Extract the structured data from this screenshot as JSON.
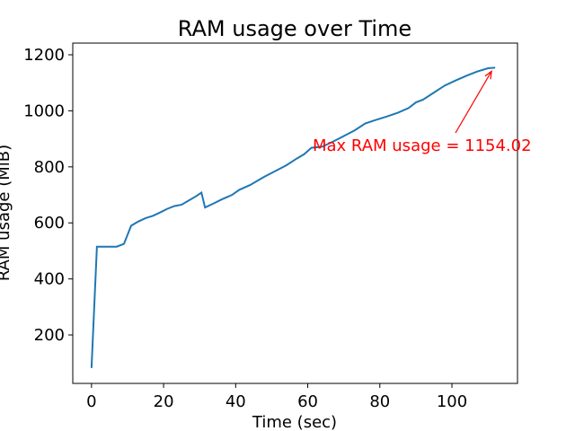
{
  "chart_data": {
    "type": "line",
    "title": "RAM usage over Time",
    "x_label": "Time (sec)",
    "y_label": "RAM usage (MiB)",
    "annotation": "Max RAM usage = 1154.02",
    "annotation_color": "#ff0000",
    "x": [
      0,
      1.5,
      7,
      9,
      11,
      13,
      15,
      17,
      19,
      21,
      23,
      25,
      27,
      29,
      30.5,
      31.5,
      34,
      36,
      39,
      41,
      44,
      46,
      48,
      51,
      54,
      57,
      59,
      61,
      64,
      67,
      70,
      73,
      76,
      79,
      82,
      85,
      88,
      90,
      92,
      95,
      98,
      101,
      104,
      107,
      110,
      112
    ],
    "series": [
      {
        "name": "RAM usage",
        "color": "#1f77b4",
        "values": [
          82,
          515,
          515,
          525,
          590,
          605,
          617,
          625,
          637,
          650,
          660,
          665,
          680,
          695,
          708,
          655,
          670,
          683,
          700,
          718,
          735,
          750,
          765,
          785,
          805,
          830,
          845,
          868,
          872,
          890,
          910,
          930,
          955,
          968,
          980,
          993,
          1010,
          1030,
          1040,
          1065,
          1090,
          1108,
          1125,
          1140,
          1152,
          1154.02
        ]
      }
    ],
    "xlim": [
      -5.2,
      118.2
    ],
    "xticks": [
      0,
      20,
      40,
      60,
      80,
      100
    ],
    "ylim": [
      27,
      1241.7
    ],
    "yticks": [
      200,
      400,
      600,
      800,
      1000,
      1200
    ]
  }
}
